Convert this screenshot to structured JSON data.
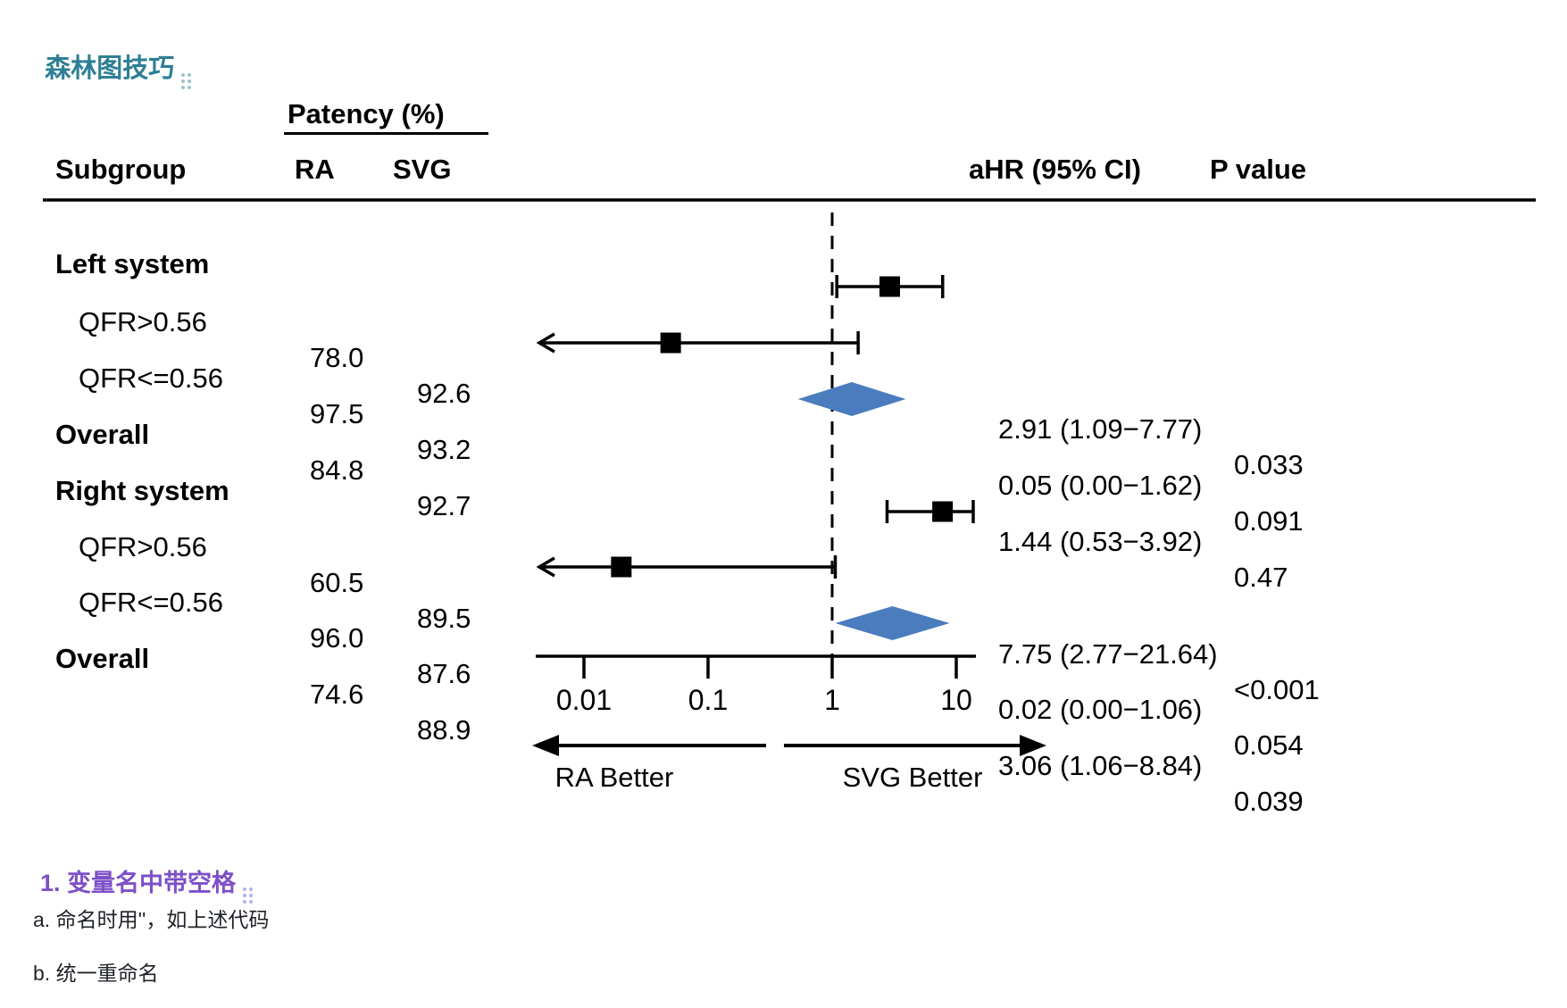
{
  "page": {
    "title": "森林图技巧",
    "section_heading": "1. 变量名中带空格",
    "notes": [
      "a. 命名时用''，如上述代码",
      "b. 统一重命名"
    ]
  },
  "table": {
    "col_group_header": "Patency (%)",
    "headers": {
      "subgroup": "Subgroup",
      "ra": "RA",
      "svg": "SVG",
      "ahr": "aHR (95% CI)",
      "p": "P value"
    },
    "rows": [
      {
        "label": "Left system"
      },
      {
        "label": "QFR>0.56",
        "ra": "78.0",
        "svg": "92.6",
        "ahr": "2.91 (1.09−7.77)",
        "p": "0.033"
      },
      {
        "label": "QFR<=0.56",
        "ra": "97.5",
        "svg": "93.2",
        "ahr": "0.05 (0.00−1.62)",
        "p": "0.091"
      },
      {
        "label": "Overall",
        "ra": "84.8",
        "svg": "92.7",
        "ahr": "1.44 (0.53−3.92)",
        "p": "0.47"
      },
      {
        "label": "Right system"
      },
      {
        "label": "QFR>0.56",
        "ra": "60.5",
        "svg": "89.5",
        "ahr": "7.75 (2.77−21.64)",
        "p": "<0.001"
      },
      {
        "label": "QFR<=0.56",
        "ra": "96.0",
        "svg": "87.6",
        "ahr": "0.02 (0.00−1.06)",
        "p": "0.054"
      },
      {
        "label": "Overall",
        "ra": "74.6",
        "svg": "88.9",
        "ahr": "3.06 (1.06−8.84)",
        "p": "0.039"
      }
    ]
  },
  "chart_data": {
    "type": "forest",
    "title": "",
    "x_axis": {
      "scale": "log10",
      "ticks": [
        0.01,
        0.1,
        1,
        10
      ],
      "tick_labels": [
        "0.01",
        "0.1",
        "1",
        "10"
      ],
      "reference_line": 1
    },
    "direction_labels": {
      "left": "RA Better",
      "right": "SVG Better"
    },
    "rows": [
      {
        "subgroup": "Left system",
        "group": true
      },
      {
        "subgroup": "QFR>0.56",
        "patency_ra": 78.0,
        "patency_svg": 92.6,
        "est": 2.91,
        "lo": 1.09,
        "hi": 7.77,
        "p": "0.033",
        "marker": "square"
      },
      {
        "subgroup": "QFR<=0.56",
        "patency_ra": 97.5,
        "patency_svg": 93.2,
        "est": 0.05,
        "lo": 0.0,
        "hi": 1.62,
        "p": "0.091",
        "marker": "square",
        "clipped_left": true
      },
      {
        "subgroup": "Overall",
        "patency_ra": 84.8,
        "patency_svg": 92.7,
        "est": 1.44,
        "lo": 0.53,
        "hi": 3.92,
        "p": "0.47",
        "marker": "diamond"
      },
      {
        "subgroup": "Right system",
        "group": true
      },
      {
        "subgroup": "QFR>0.56",
        "patency_ra": 60.5,
        "patency_svg": 89.5,
        "est": 7.75,
        "lo": 2.77,
        "hi": 21.64,
        "p": "<0.001",
        "marker": "square"
      },
      {
        "subgroup": "QFR<=0.56",
        "patency_ra": 96.0,
        "patency_svg": 87.6,
        "est": 0.02,
        "lo": 0.0,
        "hi": 1.06,
        "p": "0.054",
        "marker": "square",
        "clipped_left": true
      },
      {
        "subgroup": "Overall",
        "patency_ra": 74.6,
        "patency_svg": 88.9,
        "est": 3.06,
        "lo": 1.06,
        "hi": 8.84,
        "p": "0.039",
        "marker": "diamond"
      }
    ],
    "colors": {
      "marker": "#000000",
      "diamond": "#4a7cbe"
    }
  }
}
